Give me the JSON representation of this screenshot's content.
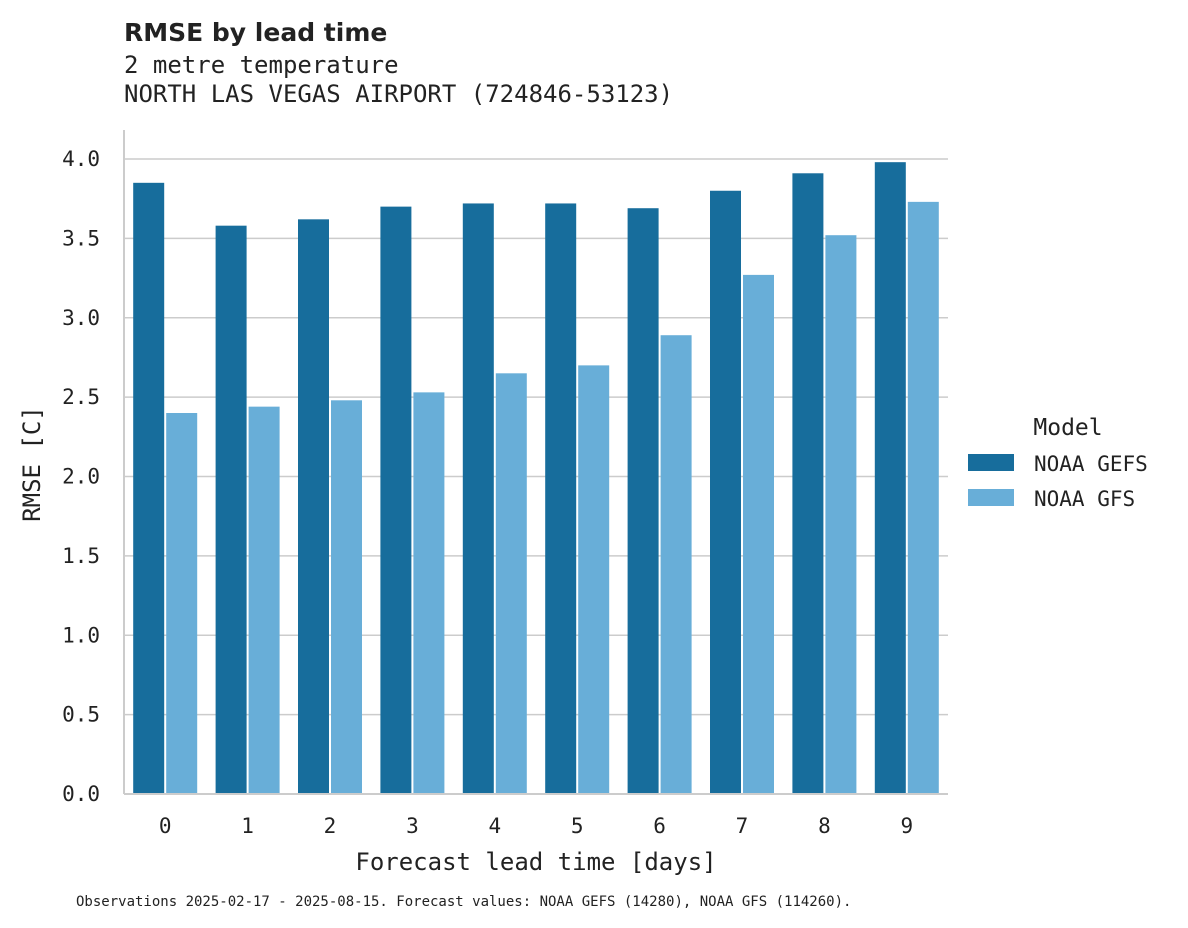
{
  "chart_data": {
    "type": "bar",
    "title": "RMSE by lead time",
    "subtitle_lines": [
      "2 metre temperature",
      "NORTH LAS VEGAS AIRPORT (724846-53123)"
    ],
    "xlabel": "Forecast lead time [days]",
    "ylabel": "RMSE [C]",
    "ylim": [
      0,
      4.2
    ],
    "yticks": [
      "0.0",
      "0.5",
      "1.0",
      "1.5",
      "2.0",
      "2.5",
      "3.0",
      "3.5",
      "4.0"
    ],
    "categories": [
      "0",
      "1",
      "2",
      "3",
      "4",
      "5",
      "6",
      "7",
      "8",
      "9"
    ],
    "series": [
      {
        "name": "NOAA GEFS",
        "color": "#176d9c",
        "values": [
          3.85,
          3.58,
          3.62,
          3.7,
          3.72,
          3.72,
          3.69,
          3.8,
          3.91,
          3.98
        ]
      },
      {
        "name": "NOAA GFS",
        "color": "#68aed8",
        "values": [
          2.4,
          2.44,
          2.48,
          2.53,
          2.65,
          2.7,
          2.89,
          3.27,
          3.52,
          3.73
        ]
      }
    ],
    "legend_title": "Model",
    "legend_position": "right",
    "grid": "horizontal",
    "footnote": "Observations 2025-02-17 - 2025-08-15. Forecast values: NOAA GEFS (14280), NOAA GFS (114260)."
  }
}
